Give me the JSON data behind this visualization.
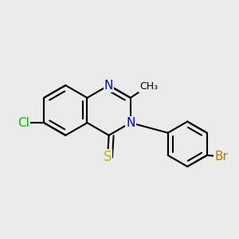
{
  "background_color": "#ebebeb",
  "bond_color": "#000000",
  "bond_width": 1.5,
  "dbo": 0.018,
  "atom_colors": {
    "N": "#0000ee",
    "Cl": "#00bb00",
    "Br": "#bb7700",
    "S": "#bbbb00",
    "C": "#000000"
  },
  "font_size_atom": 11,
  "font_size_small": 9
}
